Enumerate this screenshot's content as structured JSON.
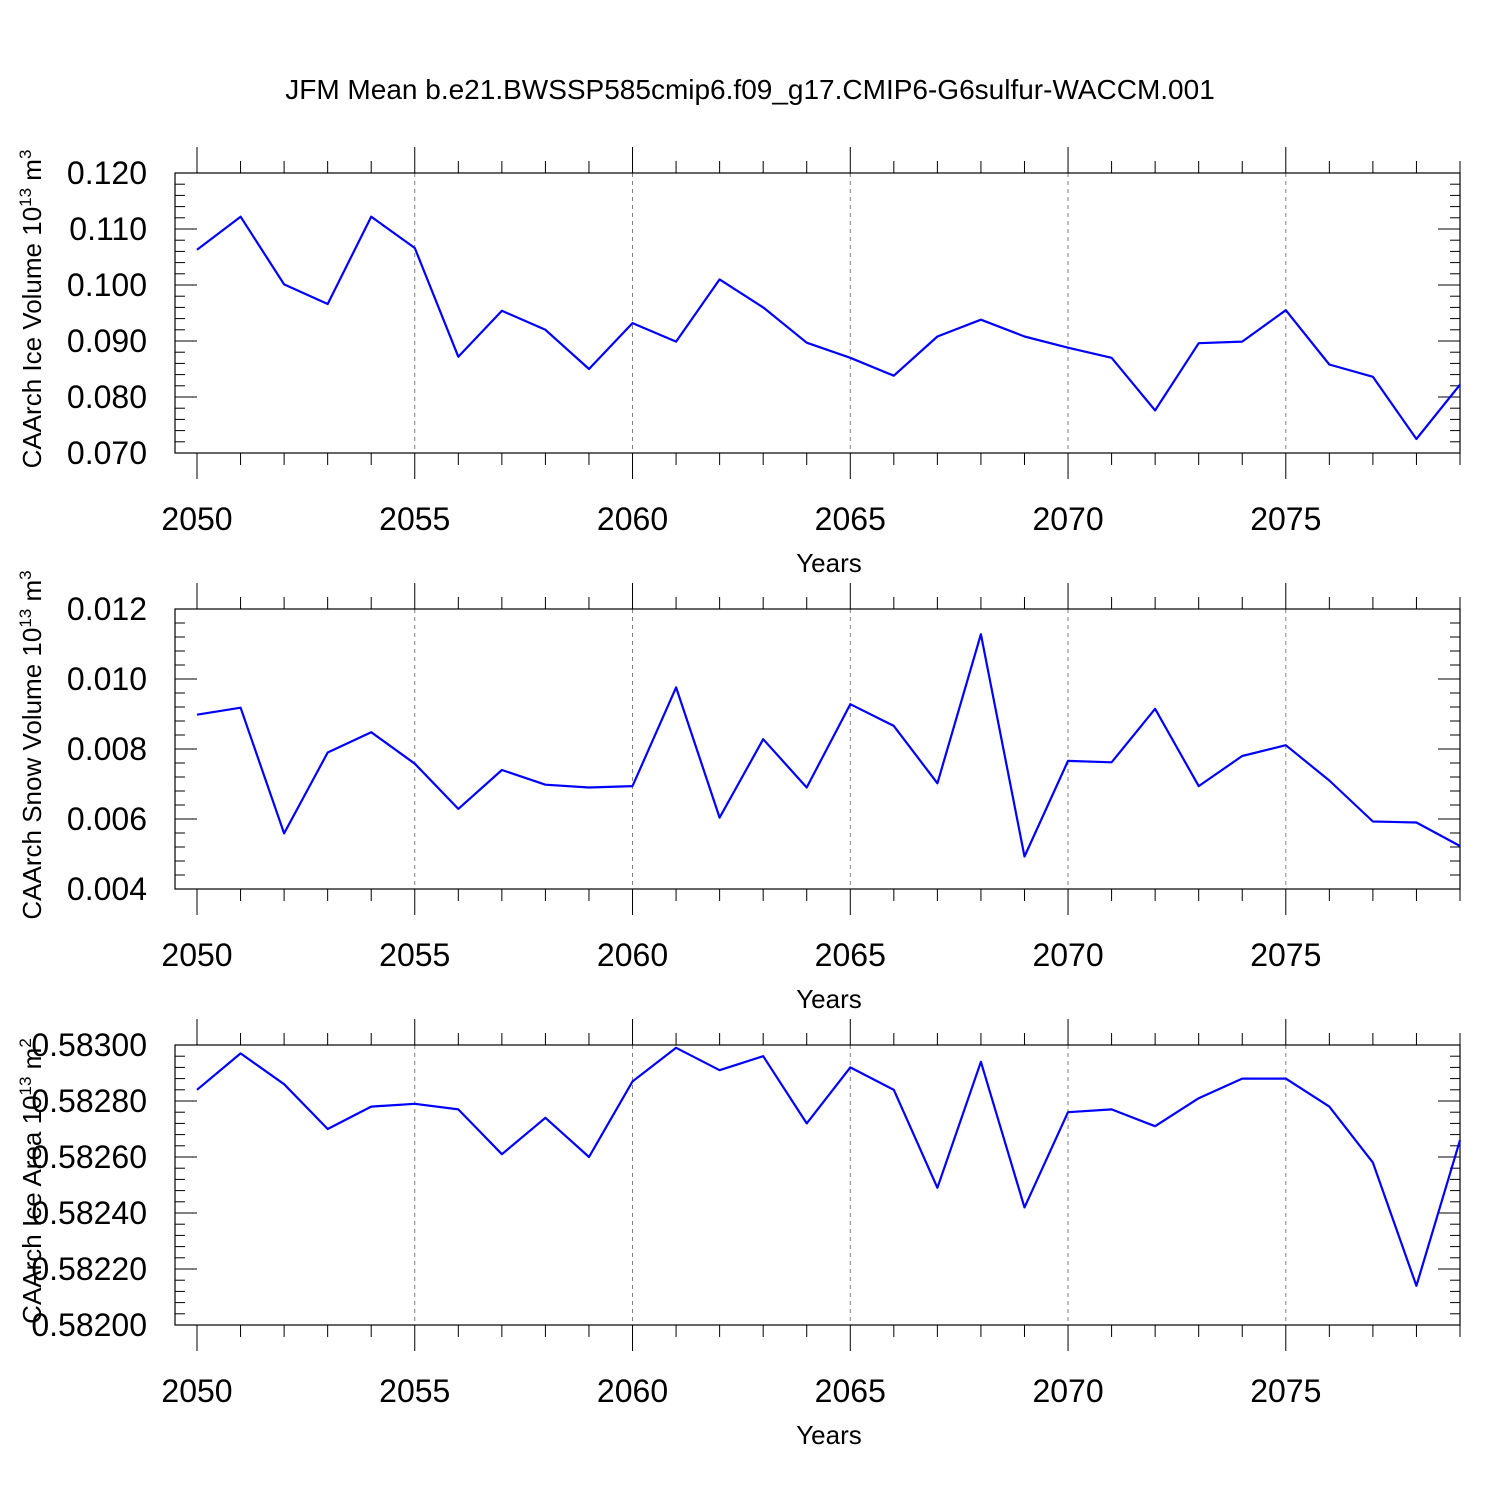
{
  "title": "JFM Mean b.e21.BWSSP585cmip6.f09_g17.CMIP6-G6sulfur-WACCM.001",
  "colors": {
    "series": "#0000ff",
    "grid": "#808080",
    "frame": "#000000"
  },
  "chart_data": [
    {
      "type": "line",
      "xlabel": "Years",
      "ylabel": "CAArch Ice Volume 10",
      "ylabel_exponent": "13",
      "ylabel_unit": "m",
      "ylabel_unit_exponent": "3",
      "xlim": [
        2050,
        2079
      ],
      "ylim": [
        0.07,
        0.12
      ],
      "x_ticks": [
        "2050",
        "2055",
        "2060",
        "2065",
        "2070",
        "2075"
      ],
      "y_ticks": [
        "0.120",
        "0.110",
        "0.100",
        "0.090",
        "0.080",
        "0.070"
      ],
      "x_grid": "dashed",
      "x": [
        2050,
        2051,
        2052,
        2053,
        2054,
        2055,
        2056,
        2057,
        2058,
        2059,
        2060,
        2061,
        2062,
        2063,
        2064,
        2065,
        2066,
        2067,
        2068,
        2069,
        2070,
        2071,
        2072,
        2073,
        2074,
        2075,
        2076,
        2077,
        2078,
        2079
      ],
      "values": [
        0.1063,
        0.1122,
        0.1001,
        0.0966,
        0.1122,
        0.1066,
        0.0872,
        0.0954,
        0.092,
        0.085,
        0.0932,
        0.0899,
        0.101,
        0.096,
        0.0897,
        0.087,
        0.0838,
        0.0908,
        0.0938,
        0.0908,
        0.0888,
        0.087,
        0.0776,
        0.0896,
        0.0899,
        0.0955,
        0.0858,
        0.0836,
        0.0725,
        0.0822
      ]
    },
    {
      "type": "line",
      "xlabel": "Years",
      "ylabel": "CAArch Snow Volume 10",
      "ylabel_exponent": "13",
      "ylabel_unit": "m",
      "ylabel_unit_exponent": "3",
      "xlim": [
        2050,
        2079
      ],
      "ylim": [
        0.004,
        0.012
      ],
      "x_ticks": [
        "2050",
        "2055",
        "2060",
        "2065",
        "2070",
        "2075"
      ],
      "y_ticks": [
        "0.012",
        "0.010",
        "0.008",
        "0.006",
        "0.004"
      ],
      "x_grid": "dashed",
      "x": [
        2050,
        2051,
        2052,
        2053,
        2054,
        2055,
        2056,
        2057,
        2058,
        2059,
        2060,
        2061,
        2062,
        2063,
        2064,
        2065,
        2066,
        2067,
        2068,
        2069,
        2070,
        2071,
        2072,
        2073,
        2074,
        2075,
        2076,
        2077,
        2078,
        2079
      ],
      "values": [
        0.00898,
        0.00918,
        0.00559,
        0.0079,
        0.00848,
        0.00758,
        0.00629,
        0.0074,
        0.00698,
        0.0069,
        0.00694,
        0.00976,
        0.00604,
        0.00828,
        0.0069,
        0.00928,
        0.00866,
        0.00702,
        0.01128,
        0.00493,
        0.00766,
        0.00762,
        0.00915,
        0.00694,
        0.0078,
        0.00811,
        0.0071,
        0.00593,
        0.0059,
        0.00523
      ]
    },
    {
      "type": "line",
      "xlabel": "Years",
      "ylabel": "CAArch Ice Area 10",
      "ylabel_exponent": "13",
      "ylabel_unit": "m",
      "ylabel_unit_exponent": "2",
      "xlim": [
        2050,
        2079
      ],
      "ylim": [
        0.582,
        0.583
      ],
      "x_ticks": [
        "2050",
        "2055",
        "2060",
        "2065",
        "2070",
        "2075"
      ],
      "y_ticks": [
        "0.58300",
        "0.58280",
        "0.58260",
        "0.58240",
        "0.58220",
        "0.58200"
      ],
      "x_grid": "dashed",
      "x": [
        2050,
        2051,
        2052,
        2053,
        2054,
        2055,
        2056,
        2057,
        2058,
        2059,
        2060,
        2061,
        2062,
        2063,
        2064,
        2065,
        2066,
        2067,
        2068,
        2069,
        2070,
        2071,
        2072,
        2073,
        2074,
        2075,
        2076,
        2077,
        2078,
        2079
      ],
      "values": [
        0.58284,
        0.58297,
        0.58286,
        0.5827,
        0.58278,
        0.58279,
        0.58277,
        0.58261,
        0.58274,
        0.5826,
        0.58287,
        0.58299,
        0.58291,
        0.58296,
        0.58272,
        0.58292,
        0.58284,
        0.58249,
        0.58294,
        0.58242,
        0.58276,
        0.58277,
        0.58271,
        0.58281,
        0.58288,
        0.58288,
        0.58278,
        0.58258,
        0.58214,
        0.58266
      ]
    }
  ]
}
